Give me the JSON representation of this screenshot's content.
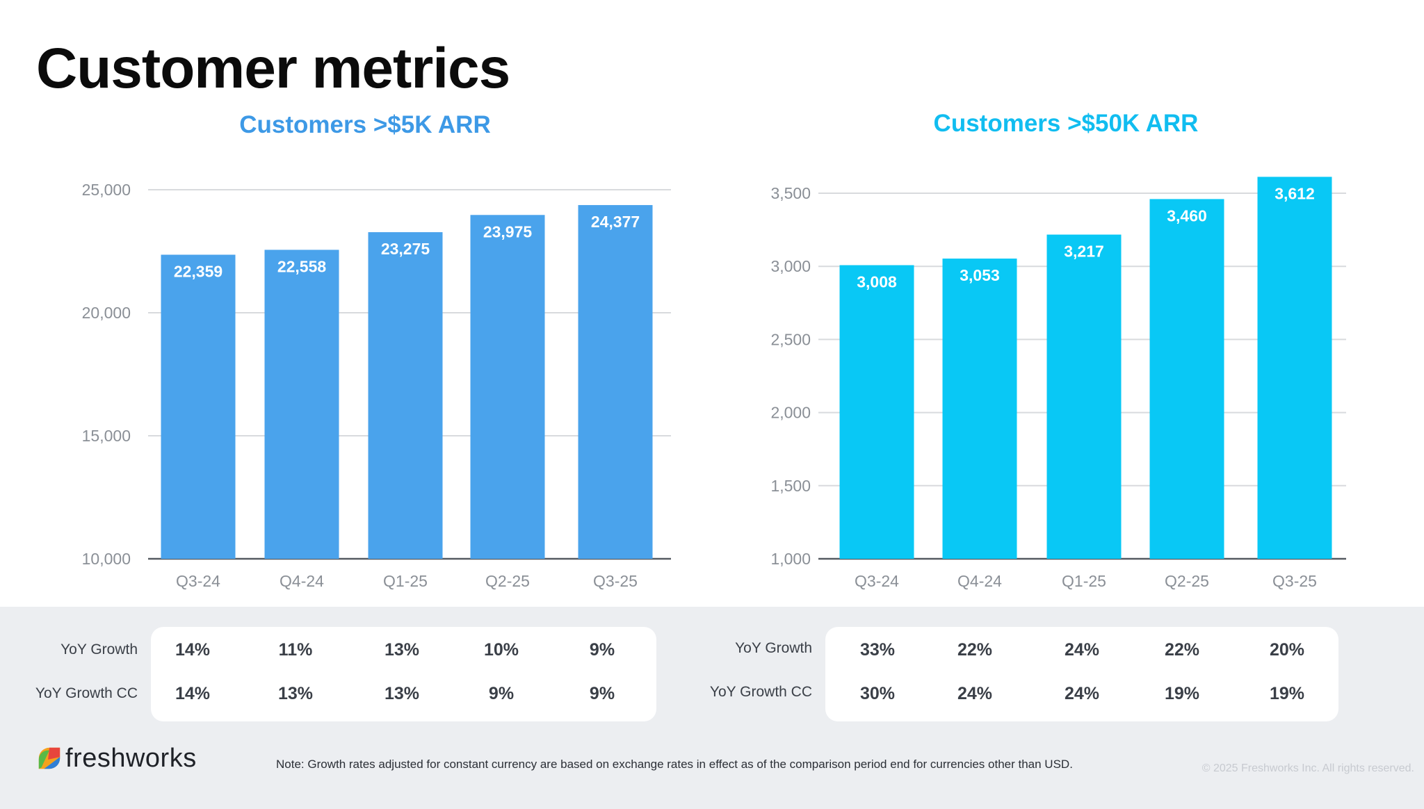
{
  "title": "Customer metrics",
  "colors": {
    "left_bar": "#4aa3ec",
    "right_bar": "#09c8f5",
    "left_title": "#3d99e6",
    "right_title": "#11bdf0",
    "axis_text": "#8a8f96",
    "grid": "#d8dadd"
  },
  "chart_data": [
    {
      "type": "bar",
      "title": "Customers >$5K ARR",
      "categories": [
        "Q3-24",
        "Q4-24",
        "Q1-25",
        "Q2-25",
        "Q3-25"
      ],
      "values": [
        22359,
        22558,
        23275,
        23975,
        24377
      ],
      "value_labels": [
        "22,359",
        "22,558",
        "23,275",
        "23,975",
        "24,377"
      ],
      "ylim": [
        10000,
        25000
      ],
      "yticks": [
        10000,
        15000,
        20000,
        25000
      ],
      "ytick_labels": [
        "10,000",
        "15,000",
        "20,000",
        "25,000"
      ],
      "grid": true,
      "xlabel": "",
      "ylabel": ""
    },
    {
      "type": "bar",
      "title": "Customers >$50K ARR",
      "categories": [
        "Q3-24",
        "Q4-24",
        "Q1-25",
        "Q2-25",
        "Q3-25"
      ],
      "values": [
        3008,
        3053,
        3217,
        3460,
        3612
      ],
      "value_labels": [
        "3,008",
        "3,053",
        "3,217",
        "3,460",
        "3,612"
      ],
      "ylim": [
        1000,
        3500
      ],
      "yticks": [
        1000,
        1500,
        2000,
        2500,
        3000,
        3500
      ],
      "ytick_labels": [
        "1,000",
        "1,500",
        "2,000",
        "2,500",
        "3,000",
        "3,500"
      ],
      "grid": true,
      "xlabel": "",
      "ylabel": ""
    }
  ],
  "growth_tables": [
    {
      "rows": [
        {
          "label": "YoY Growth",
          "values": [
            "14%",
            "11%",
            "13%",
            "10%",
            "9%"
          ]
        },
        {
          "label": "YoY Growth CC",
          "values": [
            "14%",
            "13%",
            "13%",
            "9%",
            "9%"
          ]
        }
      ]
    },
    {
      "rows": [
        {
          "label": "YoY Growth",
          "values": [
            "33%",
            "22%",
            "24%",
            "22%",
            "20%"
          ]
        },
        {
          "label": "YoY Growth CC",
          "values": [
            "30%",
            "24%",
            "24%",
            "19%",
            "19%"
          ]
        }
      ]
    }
  ],
  "footer": {
    "logo_text": "freshworks",
    "note": "Note: Growth rates adjusted for constant currency are based on exchange rates in effect as of the comparison period end for currencies other than USD.",
    "copyright": "© 2025 Freshworks Inc. All rights reserved."
  }
}
